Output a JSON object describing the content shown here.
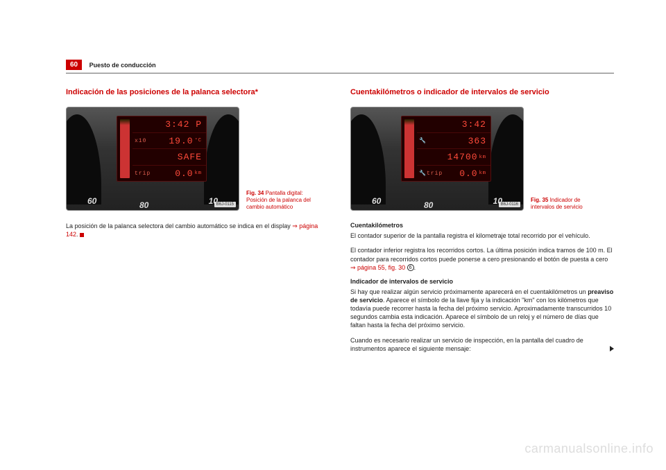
{
  "page": {
    "number": "60",
    "section": "Puesto de conducción"
  },
  "left": {
    "title": "Indicación de las posiciones de la palanca selectora*",
    "fig": {
      "label": "Fig. 34",
      "caption": "Pantalla digital: Posición de la palanca del cambio automático",
      "code": "B6J-0115",
      "gauge60": "60",
      "gauge80": "80",
      "gauge10": "10",
      "row1": "3:42  P",
      "row2_lbl": "x10",
      "row2": "19.0",
      "row2_unit": "°C",
      "row3": "SAFE",
      "row4_lbl": "trip",
      "row4": "0.0",
      "row4_unit": "km"
    },
    "para1_a": "La posición de la palanca selectora del cambio automático se indica en el display ",
    "para1_link": "⇒ página 142",
    "para1_b": "."
  },
  "right": {
    "title": "Cuentakilómetros o indicador de intervalos de servicio",
    "fig": {
      "label": "Fig. 35",
      "caption": "Indicador de intervalos de servicio",
      "code": "B6J-0116",
      "gauge60": "60",
      "gauge80": "80",
      "gauge10": "10",
      "row1": "3:42",
      "row2": "363",
      "row3": "14700",
      "row3_unit": "km",
      "row4_lbl": "trip",
      "row4": "0.0",
      "row4_unit": "km"
    },
    "sub1": "Cuentakilómetros",
    "para1": "El contador superior de la pantalla registra el kilometraje total recorrido por el vehículo.",
    "para2_a": "El contador inferior registra los recorridos cortos. La última posición indica tramos de 100 m. El contador para recorridos cortos puede ponerse a cero presionando el botón de puesta a cero ",
    "para2_link": "⇒ página 55, fig. 30",
    "para2_b": " ",
    "para2_num": "6",
    "para2_c": ".",
    "sub2": "Indicador de intervalos de servicio",
    "para3_a": "Si hay que realizar algún servicio próximamente aparecerá en el cuentakilómetros un ",
    "para3_bold": "preaviso de servicio",
    "para3_b": ". Aparece el símbolo de la llave fija y la indicación \"km\" con los kilómetros que todavía puede recorrer hasta la fecha del próximo servicio. Aproximadamente transcurridos 10 segundos cambia esta indicación. Aparece el símbolo de un reloj y el número de días que faltan hasta la fecha del próximo servicio.",
    "para4": "Cuando es necesario realizar un servicio de inspección, en la pantalla del cuadro de instrumentos aparece el siguiente mensaje:"
  },
  "watermark": "carmanualsonline.info"
}
